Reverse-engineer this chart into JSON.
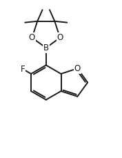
{
  "background": "#ffffff",
  "line_color": "#1a1a1a",
  "line_width": 1.4,
  "font_size": 8.5,
  "figsize": [
    1.77,
    2.29
  ],
  "dpi": 100,
  "xlim": [
    -3.5,
    3.5
  ],
  "ylim": [
    -3.8,
    5.2
  ]
}
